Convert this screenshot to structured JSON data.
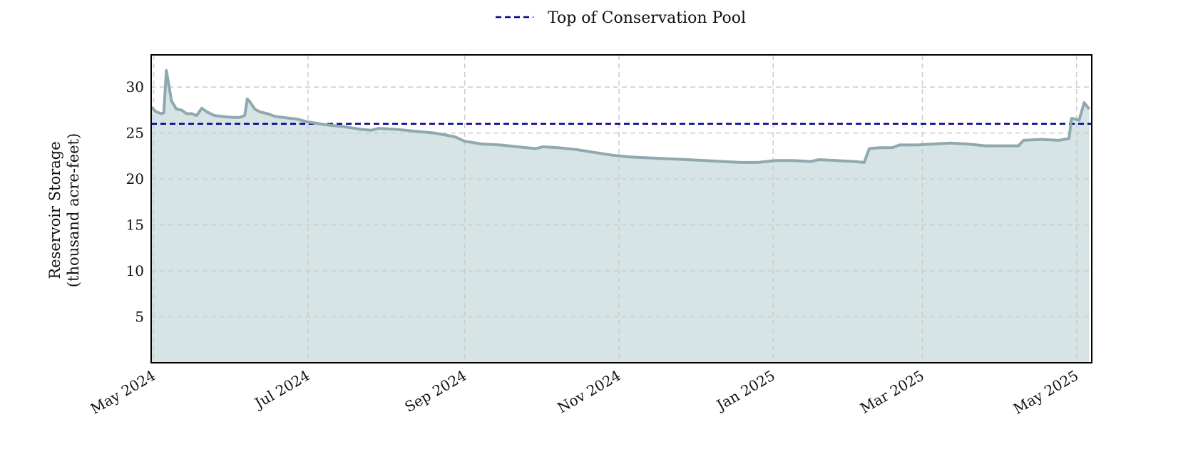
{
  "chart_data": {
    "type": "area",
    "title": "",
    "xlabel": "",
    "ylabel_lines": [
      "Reservoir Storage",
      "(thousand acre-feet)"
    ],
    "x_ticks": [
      {
        "date": "2024-05-01",
        "label": "May 2024"
      },
      {
        "date": "2024-07-01",
        "label": "Jul 2024"
      },
      {
        "date": "2024-09-01",
        "label": "Sep 2024"
      },
      {
        "date": "2024-11-01",
        "label": "Nov 2024"
      },
      {
        "date": "2025-01-01",
        "label": "Jan 2025"
      },
      {
        "date": "2025-03-01",
        "label": "Mar 2025"
      },
      {
        "date": "2025-05-01",
        "label": "May 2025"
      }
    ],
    "y_ticks": [
      5,
      10,
      15,
      20,
      25,
      30
    ],
    "xlim": [
      "2024-04-30",
      "2025-05-07"
    ],
    "ylim": [
      0,
      33.5
    ],
    "grid": true,
    "legend": {
      "placement": "top-center",
      "entries": [
        "Top of Conservation Pool"
      ]
    },
    "reference_line": {
      "value": 26.0,
      "label": "Top of Conservation Pool",
      "color": "#00008b",
      "style": "dashed"
    },
    "series": [
      {
        "color": "#8fa9ae",
        "fill": "#d6e4e6",
        "points": [
          [
            "2024-04-30",
            27.8
          ],
          [
            "2024-05-02",
            27.3
          ],
          [
            "2024-05-04",
            27.1
          ],
          [
            "2024-05-05",
            27.2
          ],
          [
            "2024-05-06",
            31.8
          ],
          [
            "2024-05-07",
            30.2
          ],
          [
            "2024-05-08",
            28.5
          ],
          [
            "2024-05-10",
            27.6
          ],
          [
            "2024-05-12",
            27.5
          ],
          [
            "2024-05-14",
            27.1
          ],
          [
            "2024-05-16",
            27.1
          ],
          [
            "2024-05-18",
            26.9
          ],
          [
            "2024-05-20",
            27.7
          ],
          [
            "2024-05-22",
            27.3
          ],
          [
            "2024-05-25",
            26.9
          ],
          [
            "2024-05-28",
            26.8
          ],
          [
            "2024-06-01",
            26.7
          ],
          [
            "2024-06-04",
            26.7
          ],
          [
            "2024-06-06",
            26.9
          ],
          [
            "2024-06-07",
            28.7
          ],
          [
            "2024-06-08",
            28.4
          ],
          [
            "2024-06-10",
            27.6
          ],
          [
            "2024-06-12",
            27.3
          ],
          [
            "2024-06-15",
            27.1
          ],
          [
            "2024-06-18",
            26.8
          ],
          [
            "2024-06-21",
            26.7
          ],
          [
            "2024-06-24",
            26.6
          ],
          [
            "2024-06-27",
            26.5
          ],
          [
            "2024-07-01",
            26.2
          ],
          [
            "2024-07-08",
            25.9
          ],
          [
            "2024-07-15",
            25.7
          ],
          [
            "2024-07-22",
            25.4
          ],
          [
            "2024-07-26",
            25.3
          ],
          [
            "2024-07-29",
            25.5
          ],
          [
            "2024-08-05",
            25.4
          ],
          [
            "2024-08-12",
            25.2
          ],
          [
            "2024-08-20",
            25.0
          ],
          [
            "2024-08-28",
            24.6
          ],
          [
            "2024-09-01",
            24.1
          ],
          [
            "2024-09-08",
            23.8
          ],
          [
            "2024-09-15",
            23.7
          ],
          [
            "2024-09-22",
            23.5
          ],
          [
            "2024-09-29",
            23.3
          ],
          [
            "2024-10-02",
            23.5
          ],
          [
            "2024-10-08",
            23.4
          ],
          [
            "2024-10-15",
            23.2
          ],
          [
            "2024-10-22",
            22.9
          ],
          [
            "2024-10-29",
            22.6
          ],
          [
            "2024-11-05",
            22.4
          ],
          [
            "2024-11-12",
            22.3
          ],
          [
            "2024-11-20",
            22.2
          ],
          [
            "2024-11-28",
            22.1
          ],
          [
            "2024-12-05",
            22.0
          ],
          [
            "2024-12-12",
            21.9
          ],
          [
            "2024-12-19",
            21.8
          ],
          [
            "2024-12-26",
            21.8
          ],
          [
            "2025-01-02",
            22.0
          ],
          [
            "2025-01-09",
            22.0
          ],
          [
            "2025-01-16",
            21.9
          ],
          [
            "2025-01-19",
            22.1
          ],
          [
            "2025-01-26",
            22.0
          ],
          [
            "2025-02-02",
            21.9
          ],
          [
            "2025-02-06",
            21.8
          ],
          [
            "2025-02-08",
            23.3
          ],
          [
            "2025-02-12",
            23.4
          ],
          [
            "2025-02-17",
            23.4
          ],
          [
            "2025-02-20",
            23.7
          ],
          [
            "2025-02-27",
            23.7
          ],
          [
            "2025-03-05",
            23.8
          ],
          [
            "2025-03-12",
            23.9
          ],
          [
            "2025-03-19",
            23.8
          ],
          [
            "2025-03-26",
            23.6
          ],
          [
            "2025-04-02",
            23.6
          ],
          [
            "2025-04-08",
            23.6
          ],
          [
            "2025-04-10",
            24.2
          ],
          [
            "2025-04-17",
            24.3
          ],
          [
            "2025-04-24",
            24.2
          ],
          [
            "2025-04-28",
            24.4
          ],
          [
            "2025-04-29",
            26.6
          ],
          [
            "2025-05-02",
            26.4
          ],
          [
            "2025-05-04",
            28.3
          ],
          [
            "2025-05-06",
            27.6
          ]
        ]
      }
    ]
  }
}
